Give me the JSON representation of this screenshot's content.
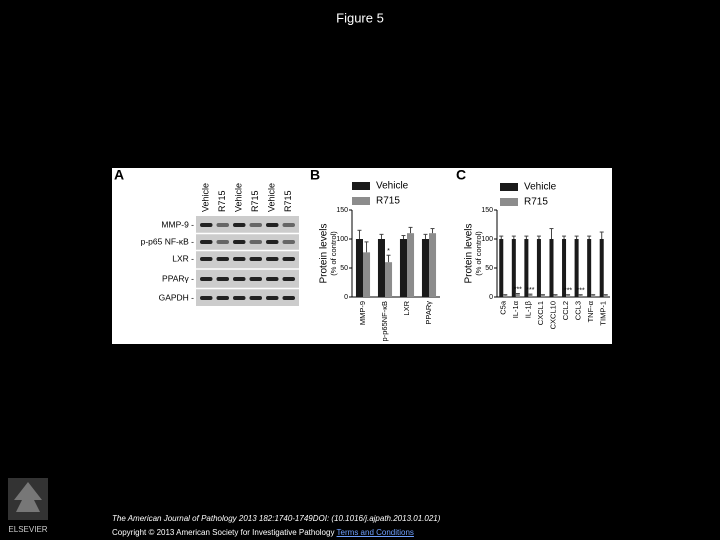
{
  "title": "Figure 5",
  "panel_a": {
    "label": "A",
    "lanes": [
      "Vehicle",
      "R715",
      "Vehicle",
      "R715",
      "Vehicle",
      "R715"
    ],
    "rows": [
      "MMP-9 -",
      "p-p65 NF-κB -",
      "LXR -",
      "PPARγ -",
      "GAPDH -"
    ]
  },
  "panel_b": {
    "label": "B",
    "type": "bar",
    "ylabel": "Protein levels",
    "ylabel_sub": "(% of control)",
    "categories": [
      "MMP-9",
      "p-p65NF-κB",
      "LXR",
      "PPARγ"
    ],
    "series": [
      {
        "name": "Vehicle",
        "color": "#1a1a1a",
        "values": [
          100,
          100,
          100,
          100
        ],
        "errors": [
          15,
          8,
          6,
          8
        ]
      },
      {
        "name": "R715",
        "color": "#8c8c8c",
        "values": [
          77,
          60,
          110,
          110
        ],
        "errors": [
          18,
          12,
          10,
          8
        ]
      }
    ],
    "ylim": [
      0,
      150
    ],
    "yticks": [
      0,
      50,
      100,
      150
    ],
    "annotations": [
      {
        "category": "p-p65NF-κB",
        "text": "*"
      }
    ]
  },
  "panel_c": {
    "label": "C",
    "type": "bar",
    "ylabel": "Protein levels",
    "ylabel_sub": "(% of control)",
    "categories": [
      "C5a",
      "IL-1α",
      "IL-1β",
      "CXCL1",
      "CXCL10",
      "CCL2",
      "CCL3",
      "TNF-α",
      "TIMP-1"
    ],
    "series": [
      {
        "name": "Vehicle",
        "color": "#1a1a1a",
        "values": [
          100,
          100,
          100,
          100,
          100,
          100,
          100,
          100,
          100
        ],
        "errors": [
          5,
          5,
          5,
          5,
          18,
          5,
          5,
          5,
          12
        ]
      },
      {
        "name": "R715",
        "color": "#8c8c8c",
        "values": [
          3,
          5,
          4,
          3,
          3,
          3,
          3,
          3,
          3
        ],
        "errors": [
          1,
          1,
          1,
          1,
          1,
          1,
          1,
          1,
          1
        ]
      }
    ],
    "ylim": [
      0,
      150
    ],
    "yticks": [
      0,
      50,
      100,
      150
    ],
    "annotations": [
      {
        "category": "IL-1α",
        "text": "***"
      },
      {
        "category": "IL-1β",
        "text": "***"
      },
      {
        "category": "CCL2",
        "text": "***"
      },
      {
        "category": "CCL3",
        "text": "***"
      }
    ]
  },
  "footer": {
    "citation": "The American Journal of Pathology 2013 182:1740-1749DOI: (10.1016/j.ajpath.2013.01.021)",
    "copyright": "Copyright © 2013 American Society for Investigative Pathology",
    "link": "Terms and Conditions",
    "logo": "ELSEVIER"
  }
}
